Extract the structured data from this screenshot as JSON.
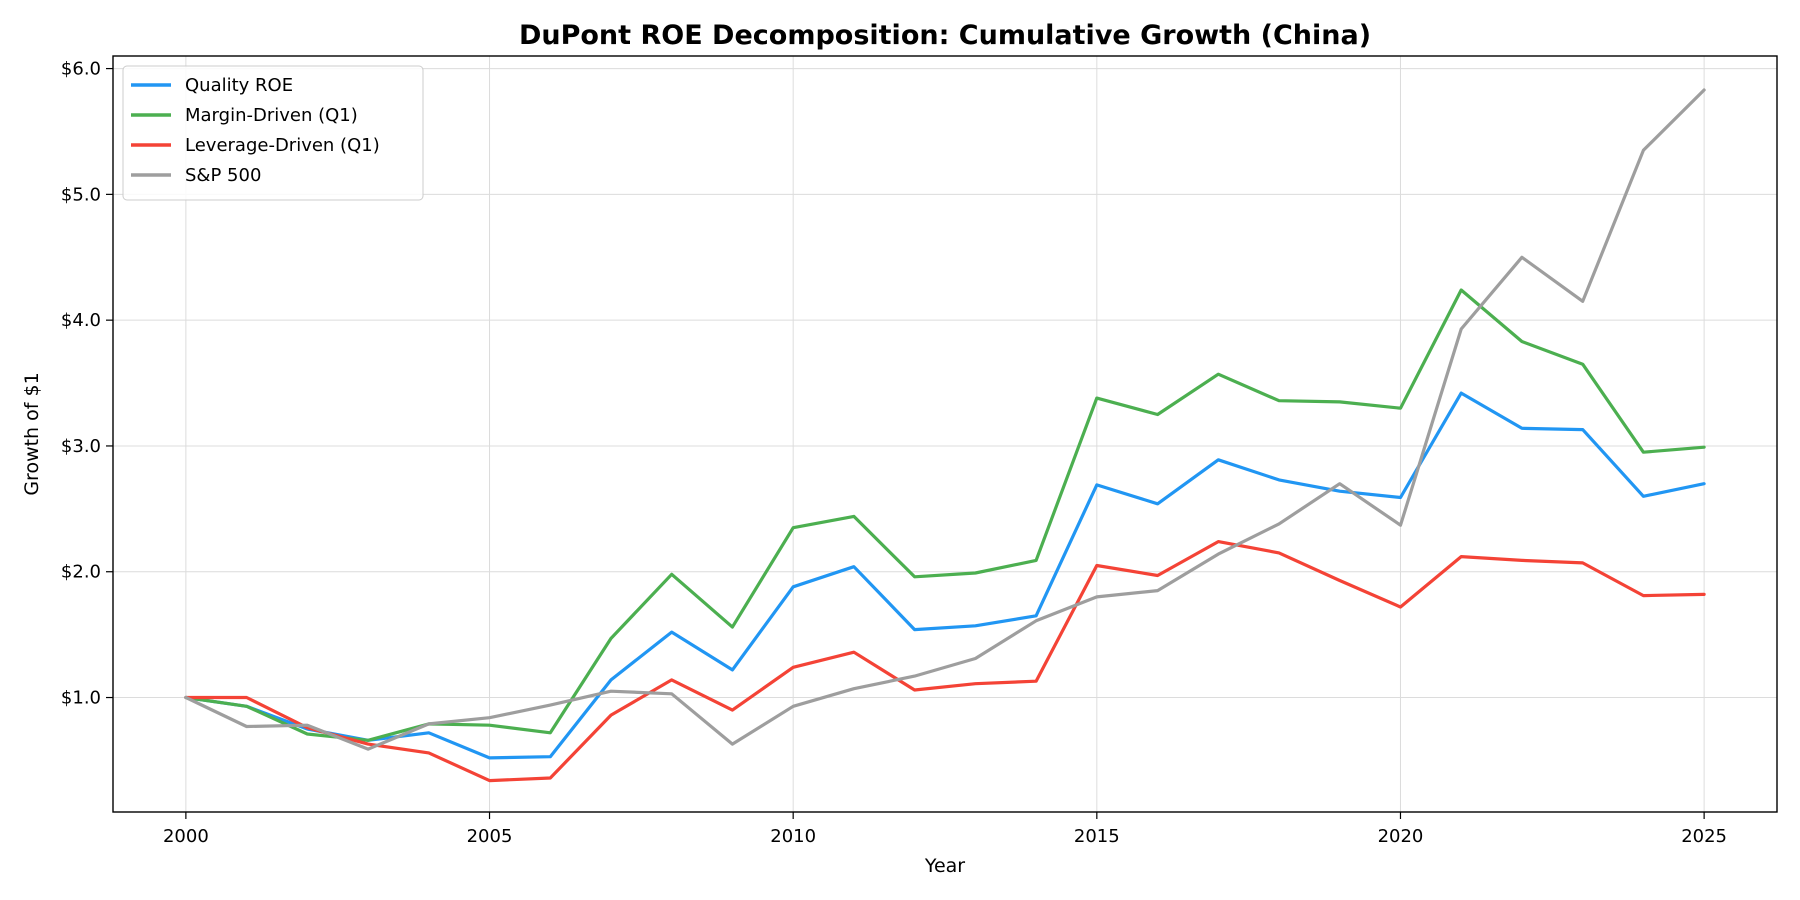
{
  "chart_data": {
    "type": "line",
    "title": "DuPont ROE Decomposition: Cumulative Growth (China)",
    "xlabel": "Year",
    "ylabel": "Growth of $1",
    "xlim": [
      1998.8,
      2026.2
    ],
    "ylim": [
      0.09,
      6.1
    ],
    "x_ticks": [
      2000,
      2005,
      2010,
      2015,
      2020,
      2025
    ],
    "y_ticks": [
      1.0,
      2.0,
      3.0,
      4.0,
      5.0,
      6.0
    ],
    "y_tick_labels": [
      "$1.0",
      "$2.0",
      "$3.0",
      "$4.0",
      "$5.0",
      "$6.0"
    ],
    "grid": true,
    "legend_position": "top-left",
    "x": [
      2000,
      2001,
      2002,
      2003,
      2004,
      2005,
      2006,
      2007,
      2008,
      2009,
      2010,
      2011,
      2012,
      2013,
      2014,
      2015,
      2016,
      2017,
      2018,
      2019,
      2020,
      2021,
      2022,
      2023,
      2024,
      2025
    ],
    "series": [
      {
        "name": "Quality ROE",
        "color": "#2196f3",
        "values": [
          1.0,
          0.93,
          0.75,
          0.66,
          0.72,
          0.52,
          0.53,
          1.14,
          1.52,
          1.22,
          1.88,
          2.04,
          1.54,
          1.57,
          1.65,
          2.69,
          2.54,
          2.89,
          2.73,
          2.64,
          2.59,
          3.42,
          3.14,
          3.13,
          2.6,
          2.7
        ]
      },
      {
        "name": "Margin-Driven (Q1)",
        "color": "#4caf50",
        "values": [
          1.0,
          0.93,
          0.71,
          0.66,
          0.79,
          0.78,
          0.72,
          1.47,
          1.98,
          1.56,
          2.35,
          2.44,
          1.96,
          1.99,
          2.09,
          3.38,
          3.25,
          3.57,
          3.36,
          3.35,
          3.3,
          4.24,
          3.83,
          3.65,
          2.95,
          2.99
        ]
      },
      {
        "name": "Leverage-Driven (Q1)",
        "color": "#f44336",
        "values": [
          1.0,
          1.0,
          0.76,
          0.63,
          0.56,
          0.34,
          0.36,
          0.86,
          1.14,
          0.9,
          1.24,
          1.36,
          1.06,
          1.11,
          1.13,
          2.05,
          1.97,
          2.24,
          2.15,
          1.93,
          1.72,
          2.12,
          2.09,
          2.07,
          1.81,
          1.82
        ]
      },
      {
        "name": "S&P 500",
        "color": "#9e9e9e",
        "values": [
          1.0,
          0.77,
          0.78,
          0.59,
          0.79,
          0.84,
          0.94,
          1.05,
          1.03,
          0.63,
          0.93,
          1.07,
          1.17,
          1.31,
          1.61,
          1.8,
          1.85,
          2.14,
          2.38,
          2.7,
          2.37,
          3.93,
          4.5,
          4.15,
          5.35,
          5.83
        ]
      }
    ]
  }
}
